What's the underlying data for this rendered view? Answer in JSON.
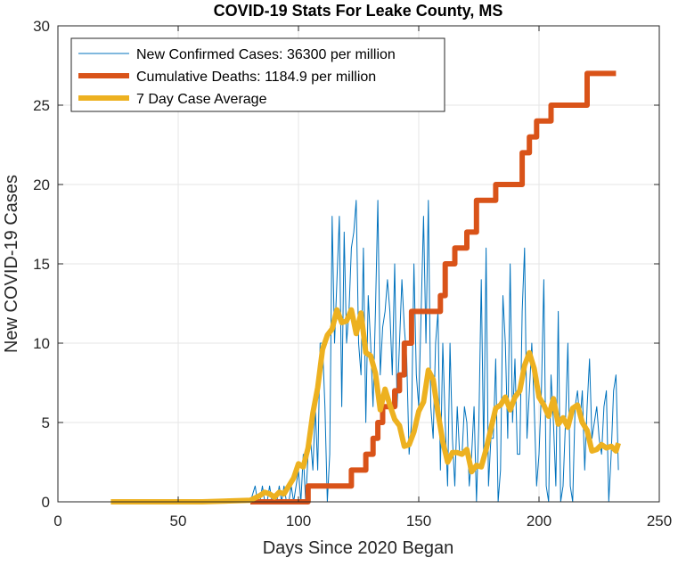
{
  "chart_data": {
    "type": "line",
    "title": "COVID-19 Stats For Leake County, MS",
    "xlabel": "Days Since 2020 Began",
    "ylabel": "New COVID-19 Cases",
    "xlim": [
      0,
      250
    ],
    "ylim": [
      0,
      30
    ],
    "xticks": [
      0,
      50,
      100,
      150,
      200,
      250
    ],
    "yticks": [
      0,
      5,
      10,
      15,
      20,
      25,
      30
    ],
    "grid": true,
    "legend_position": "top-left",
    "series": [
      {
        "name": "New Confirmed Cases: 36300 per million",
        "color": "#0072BD",
        "linewidth": "thin",
        "x": [
          22,
          30,
          40,
          50,
          60,
          70,
          78,
          80,
          82,
          83,
          84,
          85,
          86,
          87,
          88,
          89,
          90,
          91,
          92,
          93,
          94,
          95,
          96,
          97,
          98,
          99,
          100,
          101,
          102,
          103,
          104,
          105,
          106,
          107,
          108,
          109,
          110,
          111,
          112,
          113,
          114,
          115,
          116,
          117,
          118,
          119,
          120,
          121,
          122,
          123,
          124,
          125,
          126,
          127,
          128,
          129,
          130,
          131,
          132,
          133,
          134,
          135,
          136,
          137,
          138,
          139,
          140,
          141,
          142,
          143,
          144,
          145,
          146,
          147,
          148,
          149,
          150,
          151,
          152,
          153,
          154,
          155,
          156,
          157,
          158,
          159,
          160,
          161,
          162,
          163,
          164,
          165,
          166,
          167,
          168,
          169,
          170,
          171,
          172,
          173,
          174,
          175,
          176,
          177,
          178,
          179,
          180,
          181,
          182,
          183,
          184,
          185,
          186,
          187,
          188,
          189,
          190,
          191,
          192,
          193,
          194,
          195,
          196,
          197,
          198,
          199,
          200,
          201,
          202,
          203,
          204,
          205,
          206,
          207,
          208,
          209,
          210,
          211,
          212,
          213,
          214,
          215,
          216,
          217,
          218,
          219,
          220,
          221,
          222,
          223,
          224,
          225,
          226,
          227,
          228,
          229,
          230,
          231,
          232,
          233
        ],
        "y": [
          0,
          0,
          0,
          0,
          0,
          0,
          0,
          0,
          1,
          0,
          0,
          1,
          0,
          0,
          1,
          0,
          0,
          0,
          1,
          0,
          1,
          0,
          0,
          1,
          0,
          1,
          2,
          0,
          3,
          0,
          3,
          4,
          2,
          6,
          2,
          10,
          10,
          6,
          0,
          3,
          18,
          10,
          14,
          18,
          6,
          17,
          10,
          12,
          16,
          17,
          19,
          10,
          8,
          16,
          5,
          13,
          10,
          6,
          12,
          19,
          8,
          11,
          12,
          14,
          12,
          8,
          15,
          6,
          10,
          14,
          11,
          9,
          3,
          5,
          15,
          8,
          6,
          12,
          18,
          10,
          19,
          6,
          4,
          10,
          12,
          2,
          10,
          5,
          1,
          10,
          4,
          1,
          6,
          3,
          3,
          6,
          5,
          1,
          3,
          6,
          0,
          5,
          14,
          3,
          16,
          1,
          4,
          4,
          9,
          0,
          2,
          13,
          10,
          4,
          15,
          5,
          9,
          3,
          3,
          12,
          16,
          4,
          7,
          10,
          6,
          1,
          3,
          7,
          14,
          1,
          0,
          8,
          5,
          1,
          12,
          0,
          1,
          5,
          10,
          1,
          0,
          6,
          7,
          5,
          7,
          2,
          6,
          9,
          4,
          5,
          6,
          4,
          3,
          6,
          7,
          0,
          3,
          7,
          8,
          2
        ]
      },
      {
        "name": "Cumulative Deaths: 1184.9 per million",
        "color": "#D95319",
        "linewidth": "thick",
        "x": [
          80,
          104,
          104,
          119,
          119,
          122,
          122,
          122,
          122,
          128,
          128,
          131,
          131,
          133,
          133,
          135,
          135,
          140,
          140,
          142,
          142,
          144,
          144,
          147,
          147,
          149,
          149,
          154,
          154,
          156,
          156,
          159,
          159,
          161,
          161,
          163,
          163,
          165,
          165,
          168,
          168,
          170,
          170,
          172,
          172,
          174,
          174,
          177,
          177,
          180,
          180,
          182,
          182,
          185,
          185,
          189,
          189,
          193,
          193,
          196,
          196,
          199,
          199,
          202,
          202,
          205,
          205,
          208,
          208,
          211,
          211,
          215,
          215,
          220,
          220,
          224,
          224,
          232
        ],
        "y": [
          0,
          0,
          1,
          1,
          1,
          1,
          1,
          1,
          2,
          2,
          3,
          3,
          4,
          4,
          5,
          5,
          6,
          6,
          7,
          7,
          8,
          8,
          10,
          10,
          12,
          12,
          12,
          12,
          12,
          12,
          12,
          12,
          13,
          13,
          15,
          15,
          15,
          15,
          16,
          16,
          16,
          16,
          17,
          17,
          17,
          17,
          19,
          19,
          19,
          19,
          19,
          19,
          20,
          20,
          20,
          20,
          20,
          20,
          22,
          22,
          23,
          23,
          24,
          24,
          24,
          24,
          25,
          25,
          25,
          25,
          25,
          25,
          25,
          25,
          27,
          27,
          27,
          27
        ]
      },
      {
        "name": "7 Day Case Average",
        "color": "#EDB120",
        "linewidth": "thick",
        "x": [
          22,
          40,
          60,
          80,
          84,
          86,
          88,
          90,
          92,
          94,
          96,
          98,
          100,
          102,
          104,
          106,
          108,
          110,
          112,
          114,
          116,
          118,
          120,
          122,
          124,
          126,
          128,
          130,
          132,
          134,
          136,
          138,
          140,
          142,
          144,
          146,
          148,
          150,
          152,
          154,
          156,
          158,
          160,
          162,
          164,
          166,
          168,
          170,
          172,
          174,
          176,
          178,
          180,
          182,
          184,
          186,
          188,
          190,
          192,
          194,
          196,
          198,
          200,
          202,
          204,
          206,
          208,
          210,
          212,
          214,
          216,
          218,
          220,
          222,
          224,
          226,
          228,
          230,
          232,
          233
        ],
        "y": [
          0,
          0,
          0,
          0.1,
          0.4,
          0.6,
          0.5,
          0.3,
          0.6,
          0.5,
          1.0,
          1.5,
          2.4,
          2.2,
          3.4,
          5.6,
          7.2,
          9.6,
          10.5,
          10.9,
          12.1,
          11.3,
          11.4,
          12.1,
          10.6,
          11.9,
          9.4,
          9.2,
          8.1,
          5.8,
          7.1,
          6.1,
          5.2,
          4.8,
          3.5,
          3.6,
          4.4,
          5.7,
          6.3,
          8.3,
          7.7,
          5.6,
          3.8,
          2.5,
          3.1,
          3.1,
          3.0,
          3.3,
          1.9,
          2.3,
          2.2,
          3.3,
          4.6,
          5.9,
          6.1,
          6.6,
          5.8,
          6.6,
          7.0,
          8.6,
          9.4,
          8.4,
          6.6,
          6.1,
          5.4,
          6.5,
          4.9,
          5.3,
          4.7,
          5.9,
          6.1,
          5.0,
          4.5,
          3.2,
          3.3,
          3.6,
          3.4,
          3.5,
          3.2,
          3.7
        ]
      }
    ]
  }
}
